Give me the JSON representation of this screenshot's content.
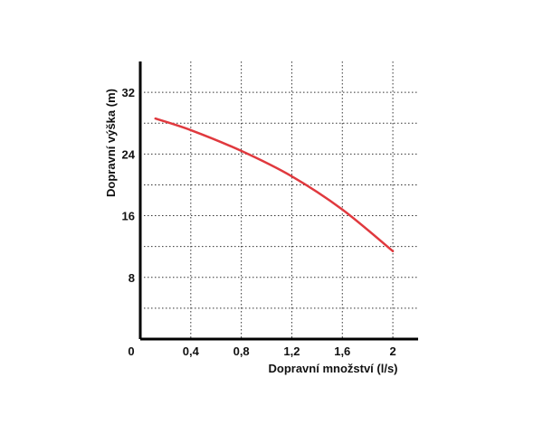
{
  "chart_data": {
    "type": "line",
    "title": "",
    "xlabel": "Dopravní množství (l/s)",
    "ylabel": "Dopravní výška (m)",
    "origin_label": "0",
    "xlim": [
      0,
      2.2
    ],
    "ylim": [
      0,
      36
    ],
    "x_ticks": [
      0.4,
      0.8,
      1.2,
      1.6,
      2.0
    ],
    "x_tick_labels": [
      "0,4",
      "0,8",
      "1,2",
      "1,6",
      "2"
    ],
    "y_ticks": [
      8,
      16,
      24,
      32
    ],
    "y_tick_labels": [
      "8",
      "16",
      "24",
      "32"
    ],
    "x_grid": [
      0.4,
      0.8,
      1.2,
      1.6,
      2.0
    ],
    "y_grid": [
      4,
      8,
      12,
      16,
      20,
      24,
      28,
      32
    ],
    "grid": true,
    "grid_style": "dotted",
    "series": [
      {
        "color": "#e0393e",
        "x": [
          0.12,
          0.4,
          0.8,
          1.2,
          1.6,
          2.0
        ],
        "y": [
          28.6,
          27.1,
          24.4,
          21.1,
          16.8,
          11.4
        ]
      }
    ]
  }
}
